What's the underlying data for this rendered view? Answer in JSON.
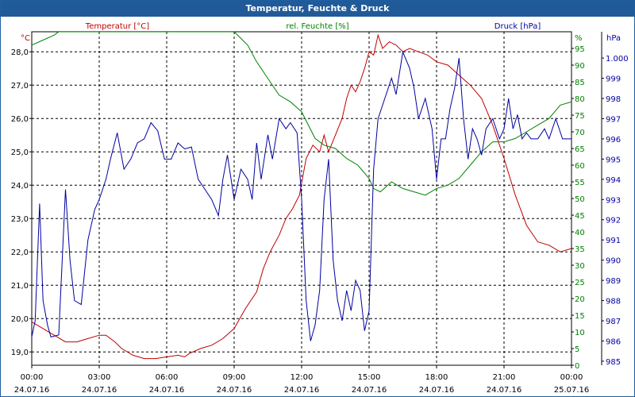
{
  "window": {
    "title": "Temperatur, Feuchte & Druck"
  },
  "colors": {
    "temperature": "#c00000",
    "humidity": "#008000",
    "pressure": "#0000a0",
    "grid": "#000000",
    "titlebar": "#215a98",
    "axis_text": "#000000"
  },
  "chart_data": {
    "type": "line",
    "title": "Temperatur, Feuchte & Druck",
    "legend_labels": {
      "temperature": "Temperatur [°C]",
      "humidity": "rel. Feuchte [%]",
      "pressure": "Druck [hPa]"
    },
    "axes": {
      "temperature": {
        "unit": "°C",
        "ylim": [
          18.6,
          28.6
        ],
        "ticks": [
          "28,0",
          "27,0",
          "26,0",
          "25,0",
          "24,0",
          "23,0",
          "22,0",
          "21,0",
          "20,0",
          "19,0"
        ],
        "tick_values": [
          28,
          27,
          26,
          25,
          24,
          23,
          22,
          21,
          20,
          19
        ]
      },
      "humidity": {
        "unit": "%",
        "ylim": [
          0,
          100
        ],
        "ticks": [
          "95",
          "90",
          "85",
          "80",
          "75",
          "70",
          "65",
          "60",
          "55",
          "50",
          "45",
          "40",
          "35",
          "30",
          "25",
          "20",
          "15",
          "10",
          "5",
          "0"
        ],
        "tick_values": [
          95,
          90,
          85,
          80,
          75,
          70,
          65,
          60,
          55,
          50,
          45,
          40,
          35,
          30,
          25,
          20,
          15,
          10,
          5,
          0
        ]
      },
      "pressure": {
        "unit": "hPa",
        "ylim": [
          984.8,
          1001.3
        ],
        "ticks": [
          "1.000",
          "999",
          "998",
          "997",
          "996",
          "995",
          "994",
          "993",
          "992",
          "991",
          "990",
          "989",
          "988",
          "987",
          "986",
          "985"
        ],
        "tick_values": [
          1000,
          999,
          998,
          997,
          996,
          995,
          994,
          993,
          992,
          991,
          990,
          989,
          988,
          987,
          986,
          985
        ]
      },
      "x": {
        "range_hours": [
          0,
          24
        ],
        "ticks": [
          {
            "hour": 0,
            "time": "00:00",
            "date": "24.07.16"
          },
          {
            "hour": 3,
            "time": "03:00",
            "date": "24.07.16"
          },
          {
            "hour": 6,
            "time": "06:00",
            "date": "24.07.16"
          },
          {
            "hour": 9,
            "time": "09:00",
            "date": "24.07.16"
          },
          {
            "hour": 12,
            "time": "12:00",
            "date": "24.07.16"
          },
          {
            "hour": 15,
            "time": "15:00",
            "date": "24.07.16"
          },
          {
            "hour": 18,
            "time": "18:00",
            "date": "24.07.16"
          },
          {
            "hour": 21,
            "time": "21:00",
            "date": "24.07.16"
          },
          {
            "hour": 24,
            "time": "00:00",
            "date": "25.07.16"
          }
        ]
      }
    },
    "grid": true,
    "series": [
      {
        "name": "Temperatur [°C]",
        "axis": "temperature",
        "points": [
          [
            0,
            19.9
          ],
          [
            0.5,
            19.7
          ],
          [
            1,
            19.5
          ],
          [
            1.5,
            19.3
          ],
          [
            2,
            19.3
          ],
          [
            2.5,
            19.4
          ],
          [
            3,
            19.5
          ],
          [
            3.3,
            19.5
          ],
          [
            3.7,
            19.3
          ],
          [
            4,
            19.1
          ],
          [
            4.5,
            18.9
          ],
          [
            5,
            18.8
          ],
          [
            5.5,
            18.8
          ],
          [
            6,
            18.85
          ],
          [
            6.5,
            18.9
          ],
          [
            6.8,
            18.85
          ],
          [
            7,
            18.95
          ],
          [
            7.5,
            19.1
          ],
          [
            8,
            19.2
          ],
          [
            8.5,
            19.4
          ],
          [
            9,
            19.7
          ],
          [
            9.5,
            20.3
          ],
          [
            10,
            20.8
          ],
          [
            10.3,
            21.5
          ],
          [
            10.6,
            22.0
          ],
          [
            11,
            22.5
          ],
          [
            11.3,
            23.0
          ],
          [
            11.6,
            23.3
          ],
          [
            11.9,
            23.7
          ],
          [
            12.2,
            24.8
          ],
          [
            12.5,
            25.2
          ],
          [
            12.8,
            25.0
          ],
          [
            13.0,
            25.5
          ],
          [
            13.2,
            25.0
          ],
          [
            13.5,
            25.5
          ],
          [
            13.8,
            26.0
          ],
          [
            14.0,
            26.6
          ],
          [
            14.2,
            27.0
          ],
          [
            14.4,
            26.8
          ],
          [
            14.6,
            27.1
          ],
          [
            14.8,
            27.5
          ],
          [
            15.0,
            28.0
          ],
          [
            15.2,
            27.9
          ],
          [
            15.4,
            28.5
          ],
          [
            15.6,
            28.1
          ],
          [
            15.9,
            28.3
          ],
          [
            16.2,
            28.2
          ],
          [
            16.5,
            28.0
          ],
          [
            16.8,
            28.1
          ],
          [
            17.2,
            28.0
          ],
          [
            17.6,
            27.9
          ],
          [
            18.0,
            27.7
          ],
          [
            18.5,
            27.6
          ],
          [
            19.0,
            27.3
          ],
          [
            19.5,
            27.0
          ],
          [
            20.0,
            26.6
          ],
          [
            20.5,
            25.8
          ],
          [
            21.0,
            24.8
          ],
          [
            21.5,
            23.7
          ],
          [
            22.0,
            22.8
          ],
          [
            22.5,
            22.3
          ],
          [
            23.0,
            22.2
          ],
          [
            23.5,
            22.0
          ],
          [
            24.0,
            22.1
          ]
        ]
      },
      {
        "name": "rel. Feuchte [%]",
        "axis": "humidity",
        "points": [
          [
            0,
            96
          ],
          [
            0.5,
            97.5
          ],
          [
            1,
            99
          ],
          [
            1.2,
            100
          ],
          [
            9,
            100
          ],
          [
            9.3,
            98
          ],
          [
            9.6,
            96
          ],
          [
            10,
            91
          ],
          [
            10.3,
            88
          ],
          [
            10.6,
            85
          ],
          [
            11,
            81
          ],
          [
            11.5,
            79
          ],
          [
            12,
            76
          ],
          [
            12.3,
            72
          ],
          [
            12.6,
            68
          ],
          [
            13,
            66
          ],
          [
            13.5,
            65
          ],
          [
            14,
            62
          ],
          [
            14.5,
            60
          ],
          [
            15,
            56
          ],
          [
            15.2,
            53
          ],
          [
            15.5,
            52
          ],
          [
            16,
            55
          ],
          [
            16.5,
            53
          ],
          [
            17,
            52
          ],
          [
            17.5,
            51
          ],
          [
            18,
            53
          ],
          [
            18.5,
            54
          ],
          [
            19,
            56
          ],
          [
            19.5,
            60
          ],
          [
            20,
            64
          ],
          [
            20.5,
            67
          ],
          [
            21,
            67
          ],
          [
            21.5,
            68
          ],
          [
            22,
            70
          ],
          [
            22.5,
            72
          ],
          [
            23,
            74
          ],
          [
            23.5,
            78
          ],
          [
            24,
            79
          ]
        ]
      },
      {
        "name": "Druck [hPa]",
        "axis": "pressure",
        "points": [
          [
            0,
            986.2
          ],
          [
            0.15,
            987.0
          ],
          [
            0.35,
            992.8
          ],
          [
            0.5,
            988.0
          ],
          [
            0.7,
            986.8
          ],
          [
            0.85,
            986.2
          ],
          [
            1.2,
            986.3
          ],
          [
            1.5,
            993.5
          ],
          [
            1.7,
            990.0
          ],
          [
            1.9,
            988.0
          ],
          [
            2.2,
            987.8
          ],
          [
            2.5,
            991.0
          ],
          [
            2.8,
            992.5
          ],
          [
            3.0,
            993.0
          ],
          [
            3.3,
            994.0
          ],
          [
            3.5,
            995.0
          ],
          [
            3.8,
            996.3
          ],
          [
            4.1,
            994.5
          ],
          [
            4.4,
            995.0
          ],
          [
            4.7,
            995.8
          ],
          [
            5.0,
            996.0
          ],
          [
            5.3,
            996.8
          ],
          [
            5.6,
            996.4
          ],
          [
            5.9,
            995.0
          ],
          [
            6.2,
            995.0
          ],
          [
            6.5,
            995.8
          ],
          [
            6.8,
            995.5
          ],
          [
            7.1,
            995.6
          ],
          [
            7.4,
            994.0
          ],
          [
            7.7,
            993.5
          ],
          [
            8.0,
            993.0
          ],
          [
            8.3,
            992.2
          ],
          [
            8.5,
            994.0
          ],
          [
            8.7,
            995.2
          ],
          [
            9.0,
            993.0
          ],
          [
            9.3,
            994.5
          ],
          [
            9.6,
            994.0
          ],
          [
            9.8,
            993.0
          ],
          [
            10.0,
            995.8
          ],
          [
            10.2,
            994.0
          ],
          [
            10.5,
            996.2
          ],
          [
            10.7,
            995.0
          ],
          [
            11.0,
            997.0
          ],
          [
            11.3,
            996.5
          ],
          [
            11.5,
            996.8
          ],
          [
            11.8,
            996.3
          ],
          [
            12.0,
            993.0
          ],
          [
            12.2,
            988.0
          ],
          [
            12.4,
            986.0
          ],
          [
            12.6,
            986.8
          ],
          [
            12.8,
            988.5
          ],
          [
            13.0,
            993.0
          ],
          [
            13.2,
            995.0
          ],
          [
            13.4,
            990.0
          ],
          [
            13.6,
            988.0
          ],
          [
            13.8,
            987.0
          ],
          [
            14.0,
            988.5
          ],
          [
            14.2,
            987.5
          ],
          [
            14.4,
            989.0
          ],
          [
            14.6,
            988.5
          ],
          [
            14.8,
            986.5
          ],
          [
            15.0,
            987.5
          ],
          [
            15.2,
            994.5
          ],
          [
            15.4,
            997.0
          ],
          [
            15.7,
            998.0
          ],
          [
            16.0,
            999.0
          ],
          [
            16.2,
            998.2
          ],
          [
            16.5,
            1000.3
          ],
          [
            16.8,
            999.5
          ],
          [
            17.0,
            998.5
          ],
          [
            17.2,
            997.0
          ],
          [
            17.5,
            998.0
          ],
          [
            17.8,
            996.5
          ],
          [
            18.0,
            994.0
          ],
          [
            18.2,
            996.0
          ],
          [
            18.4,
            996.0
          ],
          [
            18.6,
            997.5
          ],
          [
            18.8,
            998.5
          ],
          [
            19.0,
            1000.0
          ],
          [
            19.2,
            997.0
          ],
          [
            19.4,
            995.0
          ],
          [
            19.6,
            996.5
          ],
          [
            19.8,
            996.0
          ],
          [
            20.0,
            995.2
          ],
          [
            20.2,
            996.5
          ],
          [
            20.5,
            997.0
          ],
          [
            20.8,
            996.0
          ],
          [
            21.0,
            996.5
          ],
          [
            21.2,
            998.0
          ],
          [
            21.4,
            996.5
          ],
          [
            21.6,
            997.2
          ],
          [
            21.8,
            996.0
          ],
          [
            22.0,
            996.3
          ],
          [
            22.2,
            996.0
          ],
          [
            22.5,
            996.0
          ],
          [
            22.8,
            996.5
          ],
          [
            23.0,
            996.0
          ],
          [
            23.3,
            997.0
          ],
          [
            23.6,
            996.0
          ],
          [
            24.0,
            996.0
          ]
        ]
      }
    ]
  }
}
